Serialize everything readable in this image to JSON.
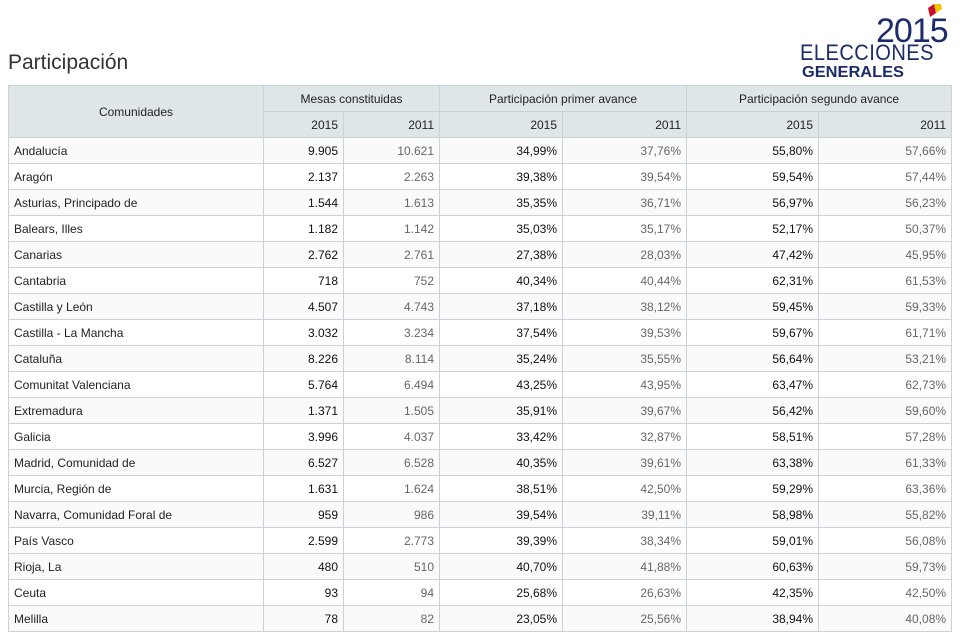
{
  "page": {
    "title": "Participación"
  },
  "logo": {
    "year": "2015",
    "line1": "ELECCIONES",
    "line2": "GENERALES",
    "colors": {
      "navy": "#1c2c6b",
      "red": "#c8102e",
      "yellow": "#f2c500"
    }
  },
  "table": {
    "name_header": "Comunidades",
    "groups": [
      "Mesas constituidas",
      "Participación primer avance",
      "Participación segundo avance"
    ],
    "years": [
      "2015",
      "2011",
      "2015",
      "2011",
      "2015",
      "2011"
    ],
    "rows": [
      {
        "name": "Andalucía",
        "values": [
          "9.905",
          "10.621",
          "34,99%",
          "37,76%",
          "55,80%",
          "57,66%"
        ]
      },
      {
        "name": "Aragón",
        "values": [
          "2.137",
          "2.263",
          "39,38%",
          "39,54%",
          "59,54%",
          "57,44%"
        ]
      },
      {
        "name": "Asturias, Principado de",
        "values": [
          "1.544",
          "1.613",
          "35,35%",
          "36,71%",
          "56,97%",
          "56,23%"
        ]
      },
      {
        "name": "Balears, Illes",
        "values": [
          "1.182",
          "1.142",
          "35,03%",
          "35,17%",
          "52,17%",
          "50,37%"
        ]
      },
      {
        "name": "Canarias",
        "values": [
          "2.762",
          "2.761",
          "27,38%",
          "28,03%",
          "47,42%",
          "45,95%"
        ]
      },
      {
        "name": "Cantabria",
        "values": [
          "718",
          "752",
          "40,34%",
          "40,44%",
          "62,31%",
          "61,53%"
        ]
      },
      {
        "name": "Castilla y León",
        "values": [
          "4.507",
          "4.743",
          "37,18%",
          "38,12%",
          "59,45%",
          "59,33%"
        ]
      },
      {
        "name": "Castilla - La Mancha",
        "values": [
          "3.032",
          "3.234",
          "37,54%",
          "39,53%",
          "59,67%",
          "61,71%"
        ]
      },
      {
        "name": "Cataluña",
        "values": [
          "8.226",
          "8.114",
          "35,24%",
          "35,55%",
          "56,64%",
          "53,21%"
        ]
      },
      {
        "name": "Comunitat Valenciana",
        "values": [
          "5.764",
          "6.494",
          "43,25%",
          "43,95%",
          "63,47%",
          "62,73%"
        ]
      },
      {
        "name": "Extremadura",
        "values": [
          "1.371",
          "1.505",
          "35,91%",
          "39,67%",
          "56,42%",
          "59,60%"
        ]
      },
      {
        "name": "Galicia",
        "values": [
          "3.996",
          "4.037",
          "33,42%",
          "32,87%",
          "58,51%",
          "57,28%"
        ]
      },
      {
        "name": "Madrid, Comunidad de",
        "values": [
          "6.527",
          "6.528",
          "40,35%",
          "39,61%",
          "63,38%",
          "61,33%"
        ]
      },
      {
        "name": "Murcia, Región de",
        "values": [
          "1.631",
          "1.624",
          "38,51%",
          "42,50%",
          "59,29%",
          "63,36%"
        ]
      },
      {
        "name": "Navarra, Comunidad Foral de",
        "values": [
          "959",
          "986",
          "39,54%",
          "39,11%",
          "58,98%",
          "55,82%"
        ]
      },
      {
        "name": "País Vasco",
        "values": [
          "2.599",
          "2.773",
          "39,39%",
          "38,34%",
          "59,01%",
          "56,08%"
        ]
      },
      {
        "name": "Rioja, La",
        "values": [
          "480",
          "510",
          "40,70%",
          "41,88%",
          "60,63%",
          "59,73%"
        ]
      },
      {
        "name": "Ceuta",
        "values": [
          "93",
          "94",
          "25,68%",
          "26,63%",
          "42,35%",
          "42,50%"
        ]
      },
      {
        "name": "Melilla",
        "values": [
          "78",
          "82",
          "23,05%",
          "25,56%",
          "38,94%",
          "40,08%"
        ]
      }
    ]
  }
}
